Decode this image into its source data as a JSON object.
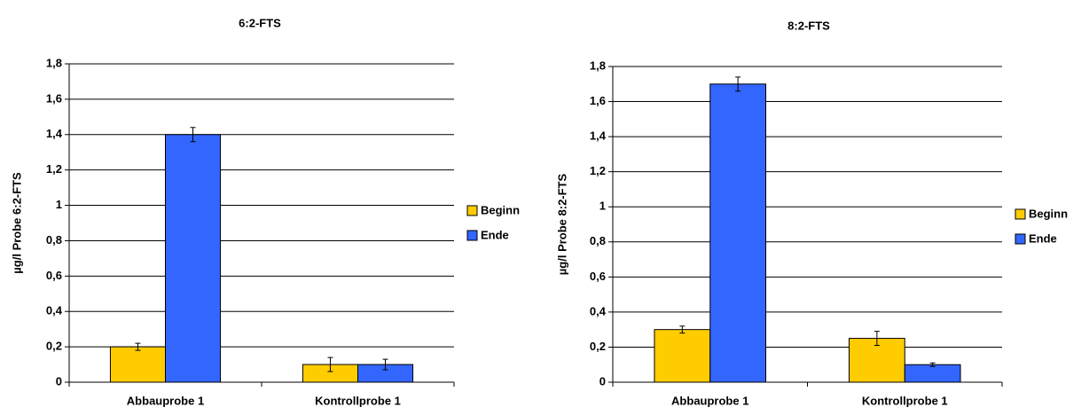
{
  "chart_data": [
    {
      "type": "bar",
      "title": "6:2-FTS",
      "y_label": "µg/l Probe 6:2-FTS",
      "categories": [
        "Abbauprobe 1",
        "Kontrollprobe 1"
      ],
      "series": [
        {
          "name": "Beginn",
          "color": "#ffcc00",
          "values": [
            0.2,
            0.1
          ],
          "errors": [
            0.02,
            0.04
          ]
        },
        {
          "name": "Ende",
          "color": "#3366ff",
          "values": [
            1.4,
            0.1
          ],
          "errors": [
            0.04,
            0.03
          ]
        }
      ],
      "ylim": [
        0,
        1.8
      ],
      "yticks": [
        0,
        {
          "value": 0.2,
          "label": "0,2"
        },
        {
          "value": 0.4,
          "label": "0,4"
        },
        {
          "value": 0.6,
          "label": "0,6"
        },
        {
          "value": 0.8,
          "label": "0,8"
        },
        1,
        {
          "value": 1.2,
          "label": "1,2"
        },
        {
          "value": 1.4,
          "label": "1,4"
        },
        {
          "value": 1.6,
          "label": "1,6"
        },
        {
          "value": 1.8,
          "label": "1,8"
        }
      ],
      "grid": true,
      "legend": "right"
    },
    {
      "type": "bar",
      "title": "8:2-FTS",
      "y_label": "µg/l Probe 8:2-FTS",
      "categories": [
        "Abbauprobe 1",
        "Kontrollprobe 1"
      ],
      "series": [
        {
          "name": "Beginn",
          "color": "#ffcc00",
          "values": [
            0.3,
            0.25
          ],
          "errors": [
            0.02,
            0.04
          ]
        },
        {
          "name": "Ende",
          "color": "#3366ff",
          "values": [
            1.7,
            0.1
          ],
          "errors": [
            0.04,
            0.01
          ]
        }
      ],
      "ylim": [
        0,
        1.8
      ],
      "yticks": [
        0,
        {
          "value": 0.2,
          "label": "0,2"
        },
        {
          "value": 0.4,
          "label": "0,4"
        },
        {
          "value": 0.6,
          "label": "0,6"
        },
        {
          "value": 0.8,
          "label": "0,8"
        },
        1,
        {
          "value": 1.2,
          "label": "1,2"
        },
        {
          "value": 1.4,
          "label": "1,4"
        },
        {
          "value": 1.6,
          "label": "1,6"
        },
        {
          "value": 1.8,
          "label": "1,8"
        }
      ],
      "grid": true,
      "legend": "right"
    }
  ]
}
